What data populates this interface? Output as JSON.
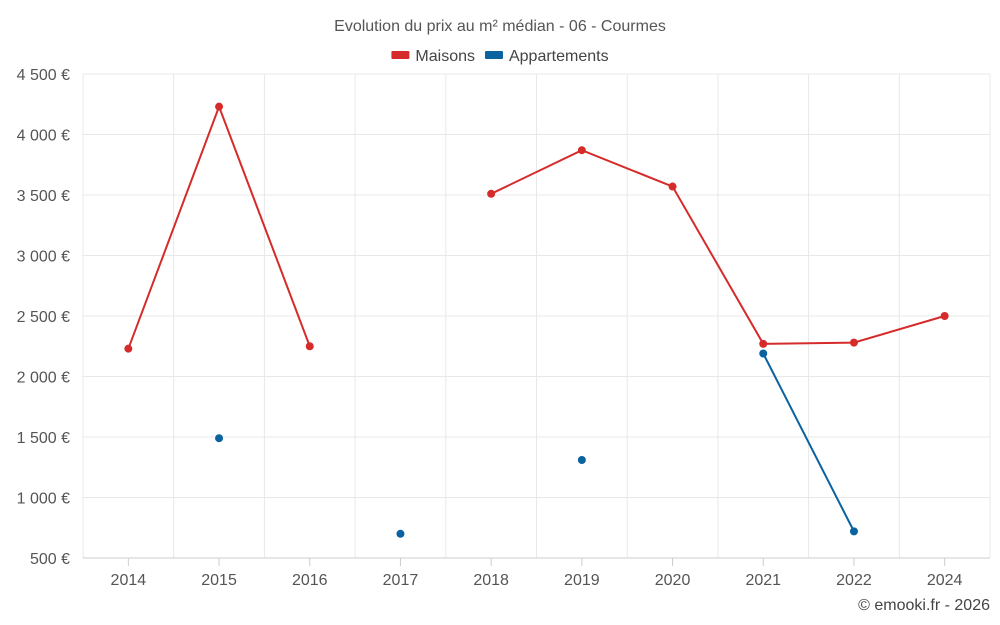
{
  "chart_data": {
    "type": "line",
    "title": "Evolution du prix au m² médian - 06 - Courmes",
    "categories": [
      "2014",
      "2015",
      "2016",
      "2017",
      "2018",
      "2019",
      "2020",
      "2021",
      "2022",
      "2024"
    ],
    "y_ticks": [
      "500 €",
      "1 000 €",
      "1 500 €",
      "2 000 €",
      "2 500 €",
      "3 000 €",
      "3 500 €",
      "4 000 €",
      "4 500 €"
    ],
    "ylim": [
      500,
      4500
    ],
    "grid": true,
    "legend_position": "top-center",
    "series": [
      {
        "name": "Maisons",
        "color": "#d62b2b",
        "values": [
          2230,
          4230,
          2250,
          null,
          3510,
          3870,
          3570,
          2270,
          2280,
          2500
        ]
      },
      {
        "name": "Appartements",
        "color": "#0a62a0",
        "values": [
          null,
          1490,
          null,
          700,
          null,
          1310,
          null,
          2190,
          720,
          null
        ]
      }
    ]
  },
  "footer": {
    "credit": "© emooki.fr - 2026"
  }
}
